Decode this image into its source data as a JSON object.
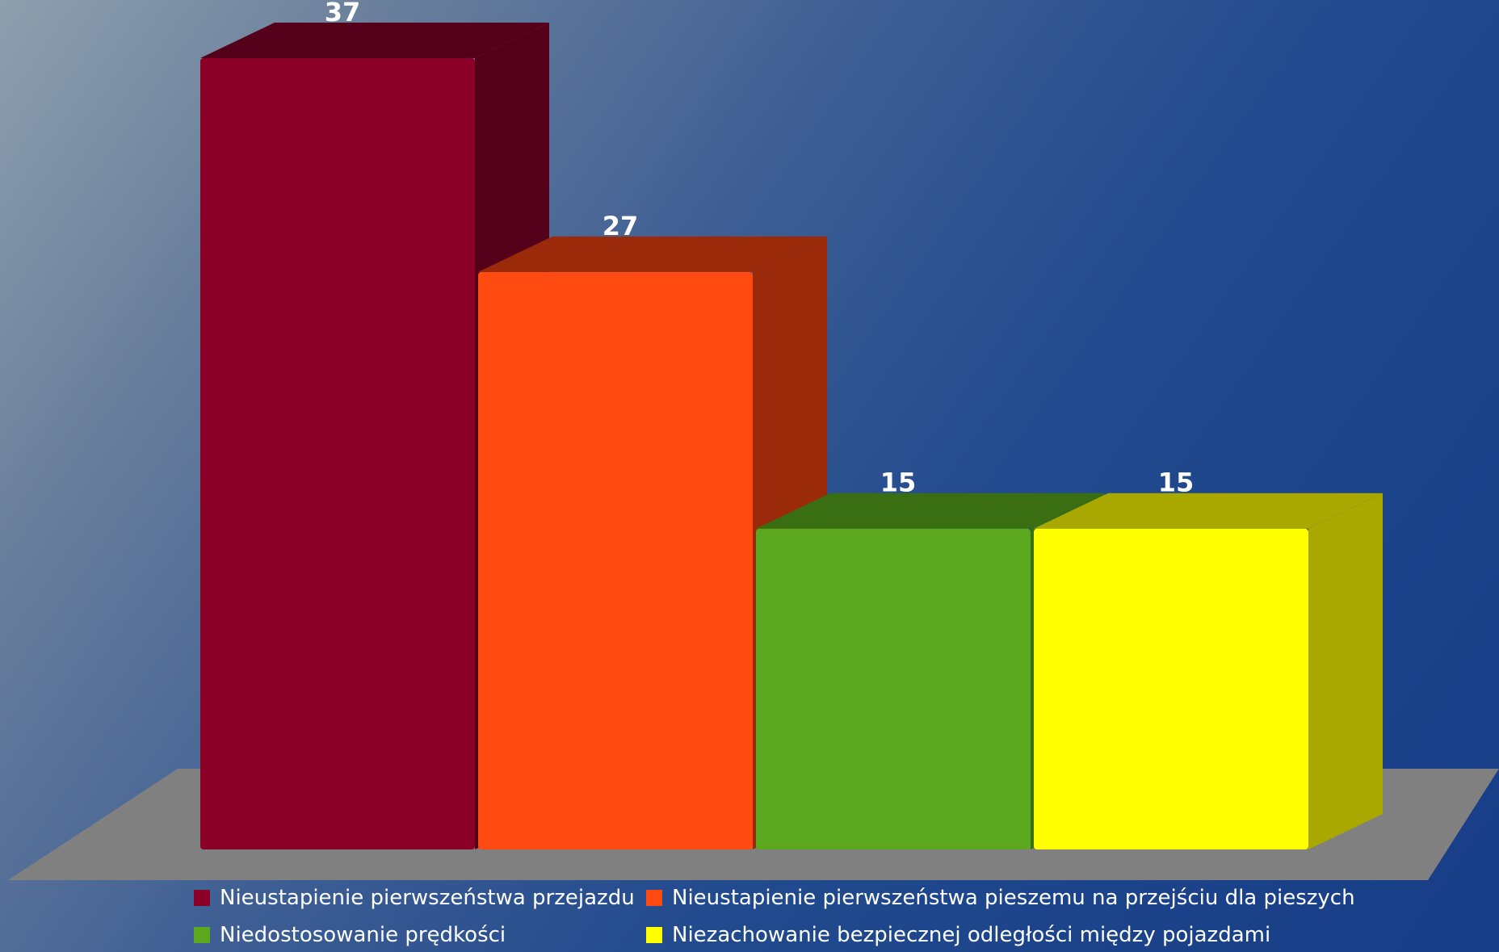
{
  "chart_data": {
    "type": "bar",
    "categories": [
      "Nieustapienie pierwszeństwa przejazdu",
      "Nieustapienie pierwszeństwa pieszemu na przejściu dla pieszych",
      "Niedostosowanie prędkości",
      "Niezachowanie bezpiecznej odległości między pojazdami"
    ],
    "values": [
      37,
      27,
      15,
      15
    ],
    "data_labels": [
      "37",
      "27",
      "15",
      "15"
    ],
    "colors": [
      "#8a0026",
      "#ff4a12",
      "#5ba81e",
      "#ffff00"
    ],
    "side_colors": [
      "#55001b",
      "#9a2a0a",
      "#3a6e12",
      "#a8a800"
    ],
    "floor_color": "#808080",
    "legend_position": "bottom",
    "grid": false,
    "ylim": [
      0,
      37
    ]
  }
}
